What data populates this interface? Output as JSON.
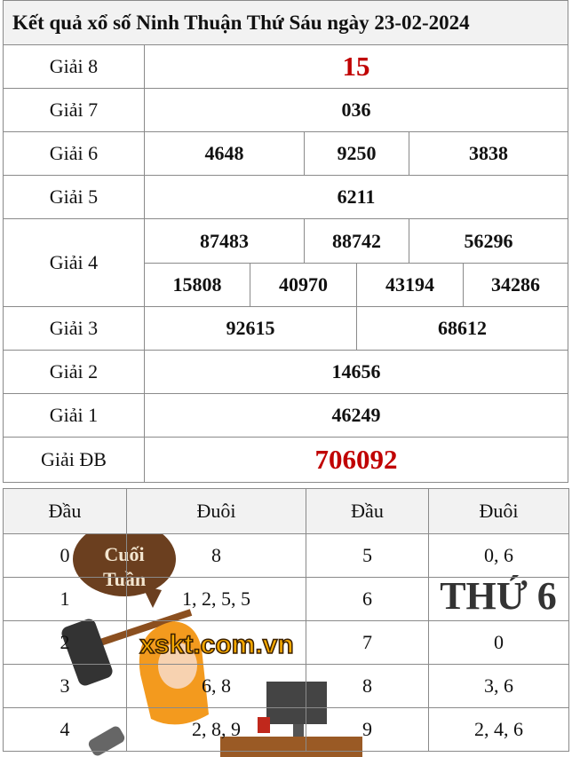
{
  "title": "Kết quả xổ số Ninh Thuận Thứ Sáu ngày 23-02-2024",
  "prizes": [
    {
      "label": "Giải 8",
      "numbers": [
        "15"
      ]
    },
    {
      "label": "Giải 7",
      "numbers": [
        "036"
      ]
    },
    {
      "label": "Giải 6",
      "numbers": [
        "4648",
        "9250",
        "3838"
      ]
    },
    {
      "label": "Giải 5",
      "numbers": [
        "6211"
      ]
    },
    {
      "label": "Giải 4",
      "numbers": [
        "87483",
        "88742",
        "56296",
        "15808",
        "40970",
        "43194",
        "34286"
      ]
    },
    {
      "label": "Giải 3",
      "numbers": [
        "92615",
        "68612"
      ]
    },
    {
      "label": "Giải 2",
      "numbers": [
        "14656"
      ]
    },
    {
      "label": "Giải 1",
      "numbers": [
        "46249"
      ]
    },
    {
      "label": "Giải ĐB",
      "numbers": [
        "706092"
      ]
    }
  ],
  "loto": {
    "headers": [
      "Đầu",
      "Đuôi",
      "Đầu",
      "Đuôi"
    ],
    "rows": [
      [
        "0",
        "8",
        "5",
        "0, 6"
      ],
      [
        "1",
        "1, 2, 5, 5",
        "6",
        ""
      ],
      [
        "2",
        "",
        "7",
        "0"
      ],
      [
        "3",
        "6, 8",
        "8",
        "3, 6"
      ],
      [
        "4",
        "2, 8, 9",
        "9",
        "2, 4, 6"
      ]
    ]
  },
  "overlay": {
    "bubble_line1": "Cuối",
    "bubble_line2": "Tuần",
    "day_text": "THỨ 6",
    "watermark": "xskt.com.vn"
  },
  "colors": {
    "highlight": "#c00000",
    "header_bg": "#f2f2f2",
    "watermark": "#f5a800"
  }
}
